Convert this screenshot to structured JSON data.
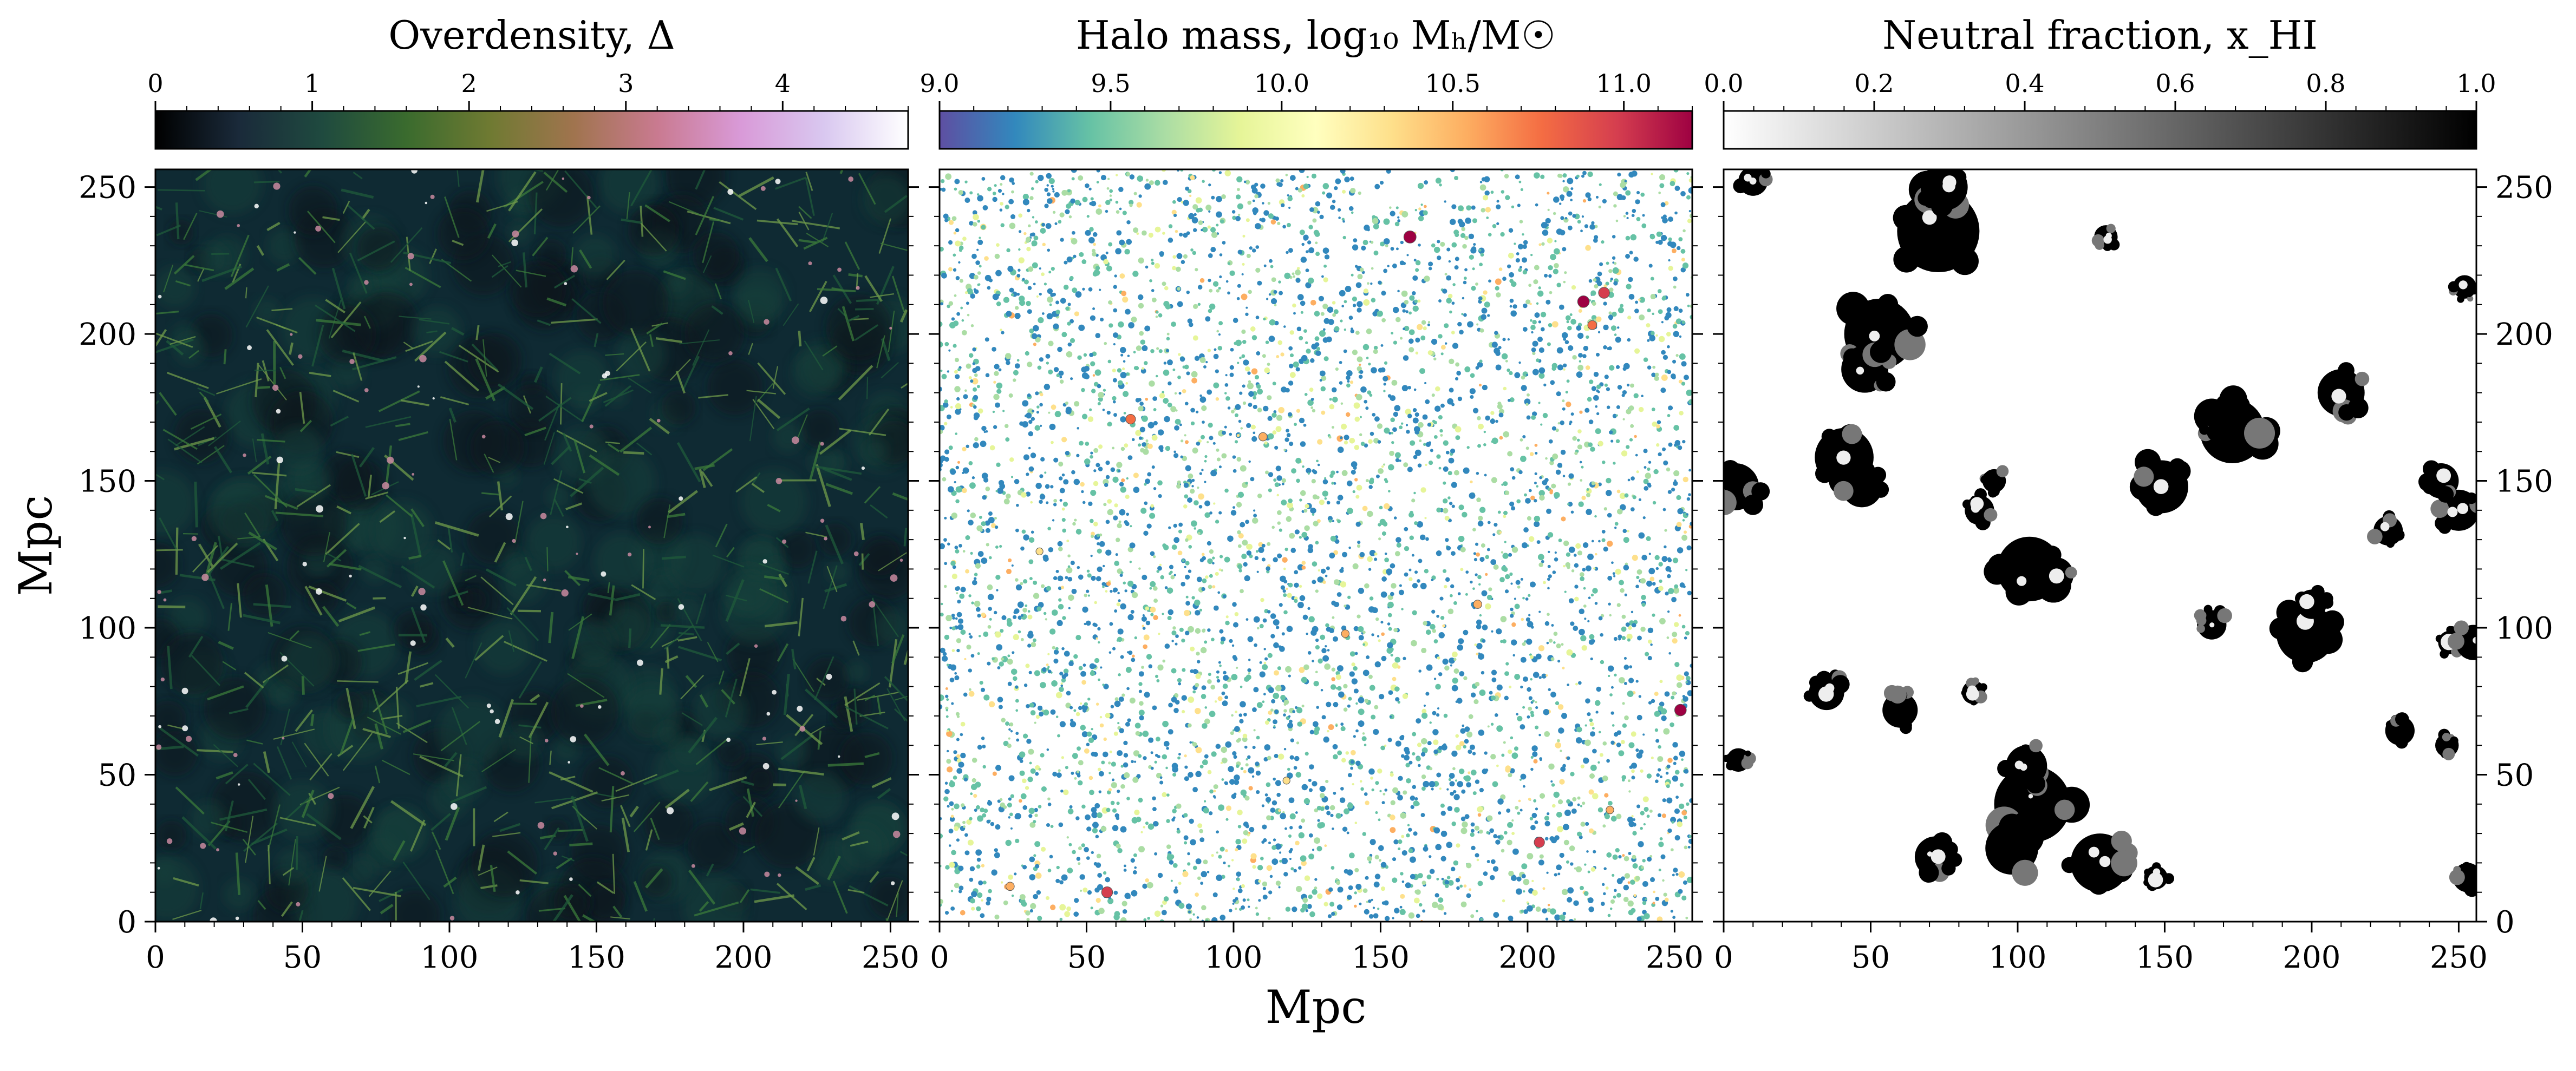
{
  "chart_data": [
    {
      "type": "heatmap",
      "panel": "overdensity",
      "colorbar": {
        "label": "Overdensity, Δ",
        "ticks": [
          "0",
          "1",
          "2",
          "3",
          "4"
        ],
        "tick_values": [
          0,
          1,
          2,
          3,
          4
        ],
        "range": [
          0,
          4.8
        ],
        "colormap": [
          "#000000",
          "#1a2a3a",
          "#1f4a3f",
          "#3a6b2e",
          "#6f7a32",
          "#a0744e",
          "#c97a90",
          "#d99ad8",
          "#d9c8f0",
          "#ffffff"
        ]
      },
      "xticks": [
        "0",
        "50",
        "100",
        "150",
        "200",
        "250"
      ],
      "yticks": [
        "0",
        "50",
        "100",
        "150",
        "200",
        "250"
      ],
      "xrange": [
        0,
        256
      ],
      "yrange": [
        0,
        256
      ],
      "ylabel": "Mpc",
      "background": "#0f2a33",
      "content_colors": [
        "#13403a",
        "#1f5a3a",
        "#3b7a3a",
        "#6f9a4a",
        "#c98aa0",
        "#ffffff"
      ]
    },
    {
      "type": "scatter",
      "panel": "halo-mass",
      "colorbar": {
        "label": "Halo mass, log₁₀ Mₕ/M☉",
        "ticks": [
          "9.0",
          "9.5",
          "10.0",
          "10.5",
          "11.0"
        ],
        "tick_values": [
          9.0,
          9.5,
          10.0,
          10.5,
          11.0
        ],
        "range": [
          9.0,
          11.2
        ],
        "colormap": [
          "#5e4fa2",
          "#3288bd",
          "#66c2a5",
          "#abdda4",
          "#e6f598",
          "#ffffbf",
          "#fee08b",
          "#fdae61",
          "#f46d43",
          "#d53e4f",
          "#9e0142"
        ]
      },
      "xticks": [
        "0",
        "50",
        "100",
        "150",
        "200",
        "250"
      ],
      "xrange": [
        0,
        256
      ],
      "yrange": [
        0,
        256
      ],
      "xlabel": "Mpc",
      "background": "#ffffff",
      "point_colors": [
        "#3288bd",
        "#66c2a5",
        "#abdda4",
        "#e6f598",
        "#fee08b",
        "#fdae61"
      ],
      "massive_halos": [
        {
          "x": 160,
          "y": 233,
          "m": 11.2
        },
        {
          "x": 219,
          "y": 211,
          "m": 11.1
        },
        {
          "x": 226,
          "y": 214,
          "m": 11.0
        },
        {
          "x": 65,
          "y": 171,
          "m": 10.8
        },
        {
          "x": 110,
          "y": 165,
          "m": 10.6
        },
        {
          "x": 222,
          "y": 203,
          "m": 10.7
        },
        {
          "x": 252,
          "y": 72,
          "m": 11.1
        },
        {
          "x": 204,
          "y": 27,
          "m": 10.9
        },
        {
          "x": 57,
          "y": 10,
          "m": 11.0
        },
        {
          "x": 24,
          "y": 12,
          "m": 10.6
        },
        {
          "x": 138,
          "y": 98,
          "m": 10.5
        },
        {
          "x": 183,
          "y": 108,
          "m": 10.6
        },
        {
          "x": 34,
          "y": 126,
          "m": 10.4
        },
        {
          "x": 118,
          "y": 48,
          "m": 10.4
        },
        {
          "x": 228,
          "y": 38,
          "m": 10.5
        }
      ]
    },
    {
      "type": "heatmap",
      "panel": "neutral-fraction",
      "colorbar": {
        "label": "Neutral fraction, x_HI",
        "ticks": [
          "0.0",
          "0.2",
          "0.4",
          "0.6",
          "0.8",
          "1.0"
        ],
        "tick_values": [
          0.0,
          0.2,
          0.4,
          0.6,
          0.8,
          1.0
        ],
        "range": [
          0.0,
          1.0
        ],
        "colormap": [
          "#ffffff",
          "#000000"
        ]
      },
      "xticks": [
        "0",
        "50",
        "100",
        "150",
        "200",
        "250"
      ],
      "yticks_right": [
        "0",
        "50",
        "100",
        "150",
        "200",
        "250"
      ],
      "xrange": [
        0,
        256
      ],
      "yrange": [
        0,
        256
      ],
      "background": "#ffffff",
      "neutral_regions": [
        {
          "x": 73,
          "y": 235,
          "r": 14
        },
        {
          "x": 75,
          "y": 250,
          "r": 8
        },
        {
          "x": 53,
          "y": 200,
          "r": 12
        },
        {
          "x": 48,
          "y": 188,
          "r": 8
        },
        {
          "x": 41,
          "y": 158,
          "r": 10
        },
        {
          "x": 47,
          "y": 148,
          "r": 7
        },
        {
          "x": 4,
          "y": 148,
          "r": 8
        },
        {
          "x": 10,
          "y": 252,
          "r": 5
        },
        {
          "x": 130,
          "y": 233,
          "r": 4
        },
        {
          "x": 104,
          "y": 120,
          "r": 11
        },
        {
          "x": 113,
          "y": 118,
          "r": 6
        },
        {
          "x": 87,
          "y": 140,
          "r": 5
        },
        {
          "x": 149,
          "y": 148,
          "r": 9
        },
        {
          "x": 173,
          "y": 167,
          "r": 11
        },
        {
          "x": 166,
          "y": 172,
          "r": 6
        },
        {
          "x": 210,
          "y": 180,
          "r": 8
        },
        {
          "x": 226,
          "y": 133,
          "r": 5
        },
        {
          "x": 250,
          "y": 140,
          "r": 7
        },
        {
          "x": 244,
          "y": 150,
          "r": 6
        },
        {
          "x": 198,
          "y": 98,
          "r": 10
        },
        {
          "x": 200,
          "y": 108,
          "r": 5
        },
        {
          "x": 166,
          "y": 101,
          "r": 5
        },
        {
          "x": 247,
          "y": 95,
          "r": 4
        },
        {
          "x": 230,
          "y": 65,
          "r": 5
        },
        {
          "x": 105,
          "y": 40,
          "r": 13
        },
        {
          "x": 103,
          "y": 53,
          "r": 7
        },
        {
          "x": 98,
          "y": 25,
          "r": 9
        },
        {
          "x": 128,
          "y": 20,
          "r": 10
        },
        {
          "x": 72,
          "y": 22,
          "r": 7
        },
        {
          "x": 35,
          "y": 78,
          "r": 6
        },
        {
          "x": 60,
          "y": 72,
          "r": 6
        },
        {
          "x": 85,
          "y": 78,
          "r": 4
        },
        {
          "x": 5,
          "y": 55,
          "r": 4
        },
        {
          "x": 253,
          "y": 15,
          "r": 5
        },
        {
          "x": 147,
          "y": 15,
          "r": 4
        },
        {
          "x": 246,
          "y": 60,
          "r": 4
        },
        {
          "x": 92,
          "y": 150,
          "r": 4
        },
        {
          "x": 255,
          "y": 95,
          "r": 6
        },
        {
          "x": 252,
          "y": 216,
          "r": 4
        }
      ]
    }
  ]
}
